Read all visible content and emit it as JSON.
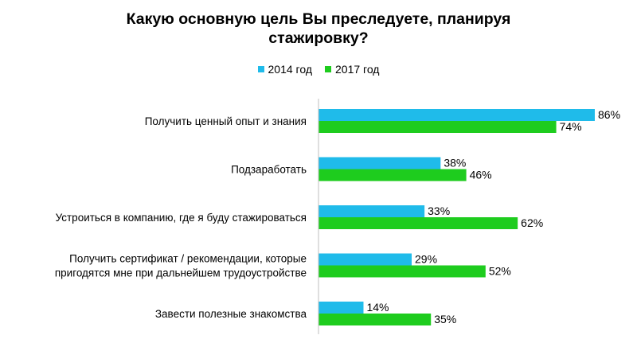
{
  "chart_data": {
    "type": "bar",
    "orientation": "horizontal",
    "title": "Какую основную цель Вы преследуете, планируя стажировку?",
    "title_lines": [
      "Какую основную цель Вы преследуете, планируя",
      "стажировку?"
    ],
    "legend_position": "top",
    "grid": false,
    "value_suffix": "%",
    "xlim": [
      0,
      86
    ],
    "categories": [
      [
        "Получить ценный опыт и знания"
      ],
      [
        "Подзаработать"
      ],
      [
        "Устроиться в компанию,  где я буду стажироваться"
      ],
      [
        "Получить сертификат / рекомендации, которые",
        "пригодятся мне при дальнейшем трудоустройстве"
      ],
      [
        "Завести полезные знакомства"
      ]
    ],
    "series": [
      {
        "name": "2014 год",
        "color": "#1FBBEA",
        "values": [
          86,
          38,
          33,
          29,
          14
        ]
      },
      {
        "name": "2017 год",
        "color": "#1ECC1E",
        "values": [
          74,
          46,
          62,
          52,
          35
        ]
      }
    ]
  }
}
